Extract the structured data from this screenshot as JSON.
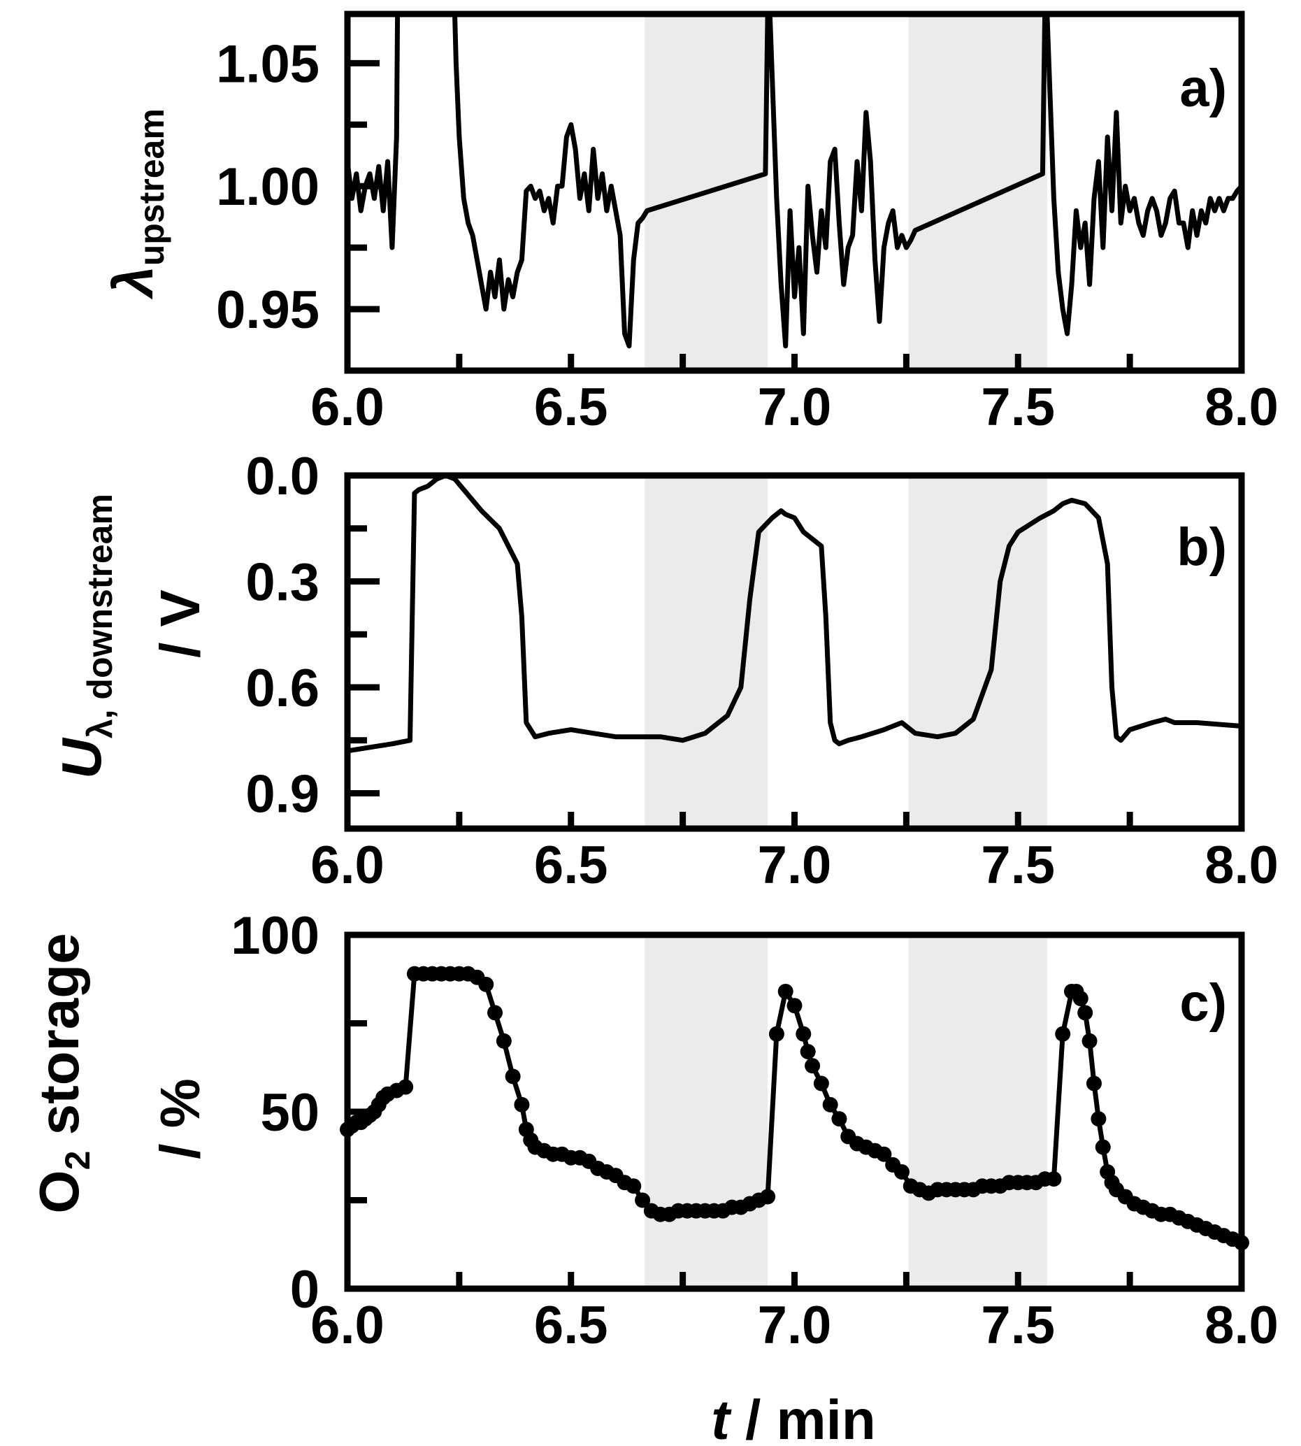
{
  "chart_data": [
    {
      "type": "line",
      "panel_label": "a)",
      "ylabel_symbol": "λ",
      "ylabel_subscript": "upstream",
      "xlim": [
        6.0,
        8.0
      ],
      "ylim": [
        0.925,
        1.07
      ],
      "yticks": [
        0.95,
        1.0,
        1.05
      ],
      "ytick_labels": [
        "0.95",
        "1.00",
        "1.05"
      ],
      "xticks": [
        6.0,
        6.5,
        7.0,
        7.5,
        8.0
      ],
      "xtick_labels": [
        "6.0",
        "6.5",
        "7.0",
        "7.5",
        "8.0"
      ],
      "shaded_x_ranges": [
        [
          6.665,
          6.94
        ],
        [
          7.255,
          7.565
        ]
      ],
      "series": [
        {
          "name": "lambda_upstream",
          "x": [
            6.0,
            6.01,
            6.02,
            6.03,
            6.04,
            6.05,
            6.06,
            6.07,
            6.08,
            6.09,
            6.1,
            6.11,
            6.112,
            6.115,
            6.24,
            6.243,
            6.25,
            6.26,
            6.27,
            6.28,
            6.29,
            6.3,
            6.31,
            6.32,
            6.33,
            6.34,
            6.35,
            6.36,
            6.37,
            6.38,
            6.39,
            6.4,
            6.41,
            6.42,
            6.43,
            6.44,
            6.45,
            6.46,
            6.47,
            6.48,
            6.49,
            6.5,
            6.51,
            6.52,
            6.53,
            6.54,
            6.55,
            6.56,
            6.57,
            6.58,
            6.59,
            6.6,
            6.61,
            6.62,
            6.63,
            6.64,
            6.65,
            6.66,
            6.67,
            6.935,
            6.94,
            6.945,
            6.96,
            6.97,
            6.98,
            6.99,
            7.0,
            7.01,
            7.02,
            7.03,
            7.04,
            7.05,
            7.06,
            7.07,
            7.08,
            7.09,
            7.1,
            7.11,
            7.12,
            7.13,
            7.14,
            7.15,
            7.16,
            7.17,
            7.18,
            7.19,
            7.2,
            7.21,
            7.22,
            7.23,
            7.24,
            7.25,
            7.26,
            7.27,
            7.555,
            7.56,
            7.565,
            7.58,
            7.59,
            7.6,
            7.61,
            7.62,
            7.63,
            7.64,
            7.65,
            7.66,
            7.67,
            7.68,
            7.69,
            7.7,
            7.71,
            7.72,
            7.73,
            7.74,
            7.75,
            7.76,
            7.77,
            7.78,
            7.79,
            7.8,
            7.81,
            7.82,
            7.83,
            7.84,
            7.85,
            7.86,
            7.87,
            7.88,
            7.89,
            7.9,
            7.91,
            7.92,
            7.93,
            7.94,
            7.95,
            7.96,
            7.97,
            7.98,
            7.99,
            8.0
          ],
          "y": [
            1.01,
            0.995,
            1.005,
            0.99,
            1.0,
            1.005,
            0.995,
            1.008,
            0.99,
            1.01,
            0.975,
            1.02,
            1.07,
            1.07,
            1.07,
            1.05,
            1.02,
            0.995,
            0.985,
            0.98,
            0.97,
            0.96,
            0.95,
            0.965,
            0.955,
            0.97,
            0.95,
            0.962,
            0.955,
            0.965,
            0.97,
            0.998,
            1.0,
            0.995,
            0.998,
            0.99,
            0.995,
            0.985,
            1.0,
            1.0,
            1.02,
            1.025,
            1.015,
            0.995,
            1.005,
            0.99,
            1.015,
            0.995,
            1.005,
            0.99,
            1.0,
            0.99,
            0.98,
            0.94,
            0.935,
            0.97,
            0.985,
            0.987,
            0.99,
            1.005,
            1.07,
            1.07,
            0.995,
            0.96,
            0.935,
            0.99,
            0.955,
            0.975,
            0.94,
            1.0,
            0.98,
            0.965,
            0.99,
            0.975,
            1.01,
            1.015,
            0.985,
            0.96,
            0.975,
            0.98,
            1.01,
            0.99,
            1.03,
            1.01,
            0.97,
            0.945,
            0.975,
            0.985,
            0.99,
            0.975,
            0.98,
            0.975,
            0.978,
            0.982,
            1.005,
            1.07,
            1.07,
            0.995,
            0.965,
            0.95,
            0.94,
            0.96,
            0.99,
            0.975,
            0.985,
            0.96,
            0.995,
            1.01,
            0.975,
            1.02,
            0.99,
            1.03,
            0.985,
            1.0,
            0.99,
            0.995,
            0.985,
            0.98,
            0.99,
            0.995,
            0.99,
            0.98,
            0.985,
            0.995,
            0.998,
            0.985,
            0.985,
            0.975,
            0.99,
            0.98,
            0.99,
            0.985,
            0.995,
            0.99,
            0.995,
            0.99,
            0.995,
            0.995,
            0.998,
            1.0
          ]
        }
      ]
    },
    {
      "type": "line",
      "panel_label": "b)",
      "ylabel_symbol": "U",
      "ylabel_subscript": "λ, downstream",
      "ylabel_unit": "/ V",
      "xlim": [
        6.0,
        8.0
      ],
      "ylim": [
        1.0,
        0.0
      ],
      "yticks": [
        0.0,
        0.3,
        0.6,
        0.9
      ],
      "ytick_labels": [
        "0.0",
        "0.3",
        "0.6",
        "0.9"
      ],
      "xticks": [
        6.0,
        6.5,
        7.0,
        7.5,
        8.0
      ],
      "xtick_labels": [
        "6.0",
        "6.5",
        "7.0",
        "7.5",
        "8.0"
      ],
      "shaded_x_ranges": [
        [
          6.665,
          6.94
        ],
        [
          7.255,
          7.565
        ]
      ],
      "series": [
        {
          "name": "U_lambda_downstream",
          "x": [
            6.0,
            6.05,
            6.1,
            6.14,
            6.15,
            6.16,
            6.18,
            6.2,
            6.22,
            6.24,
            6.26,
            6.3,
            6.34,
            6.38,
            6.39,
            6.4,
            6.41,
            6.42,
            6.45,
            6.5,
            6.55,
            6.6,
            6.65,
            6.7,
            6.75,
            6.8,
            6.85,
            6.88,
            6.9,
            6.92,
            6.95,
            6.97,
            6.98,
            7.0,
            7.02,
            7.04,
            7.06,
            7.07,
            7.08,
            7.09,
            7.1,
            7.12,
            7.15,
            7.2,
            7.24,
            7.27,
            7.32,
            7.36,
            7.4,
            7.44,
            7.46,
            7.48,
            7.5,
            7.55,
            7.58,
            7.6,
            7.62,
            7.65,
            7.68,
            7.7,
            7.71,
            7.72,
            7.73,
            7.75,
            7.8,
            7.83,
            7.85,
            7.9,
            8.0
          ],
          "y": [
            0.78,
            0.77,
            0.76,
            0.75,
            0.05,
            0.04,
            0.03,
            0.01,
            0.0,
            0.01,
            0.04,
            0.1,
            0.15,
            0.25,
            0.4,
            0.7,
            0.72,
            0.74,
            0.73,
            0.72,
            0.73,
            0.74,
            0.74,
            0.74,
            0.75,
            0.73,
            0.68,
            0.6,
            0.35,
            0.16,
            0.12,
            0.1,
            0.11,
            0.12,
            0.16,
            0.18,
            0.2,
            0.4,
            0.7,
            0.75,
            0.76,
            0.75,
            0.74,
            0.72,
            0.7,
            0.73,
            0.74,
            0.73,
            0.69,
            0.55,
            0.3,
            0.2,
            0.16,
            0.12,
            0.1,
            0.08,
            0.07,
            0.08,
            0.12,
            0.25,
            0.6,
            0.74,
            0.75,
            0.72,
            0.7,
            0.69,
            0.7,
            0.7,
            0.71
          ]
        }
      ]
    },
    {
      "type": "line",
      "panel_label": "c)",
      "ylabel_text": "O",
      "ylabel_subscript": "2",
      "ylabel_rest": " storage",
      "ylabel_unit": "/ %",
      "xlabel_symbol": "t",
      "xlabel_rest": " / min",
      "xlim": [
        6.0,
        8.0
      ],
      "ylim": [
        0,
        100
      ],
      "yticks": [
        0,
        50,
        100
      ],
      "ytick_labels": [
        "0",
        "50",
        "100"
      ],
      "xticks": [
        6.0,
        6.5,
        7.0,
        7.5,
        8.0
      ],
      "xtick_labels": [
        "6.0",
        "6.5",
        "7.0",
        "7.5",
        "8.0"
      ],
      "shaded_x_ranges": [
        [
          6.665,
          6.94
        ],
        [
          7.255,
          7.565
        ]
      ],
      "markers": true,
      "series": [
        {
          "name": "O2_storage",
          "x": [
            6.0,
            6.01,
            6.02,
            6.03,
            6.04,
            6.05,
            6.06,
            6.07,
            6.08,
            6.09,
            6.11,
            6.13,
            6.15,
            6.17,
            6.19,
            6.21,
            6.23,
            6.25,
            6.27,
            6.29,
            6.31,
            6.33,
            6.35,
            6.37,
            6.39,
            6.4,
            6.41,
            6.42,
            6.44,
            6.46,
            6.48,
            6.5,
            6.52,
            6.54,
            6.56,
            6.58,
            6.6,
            6.62,
            6.64,
            6.66,
            6.68,
            6.7,
            6.72,
            6.74,
            6.76,
            6.78,
            6.8,
            6.82,
            6.84,
            6.86,
            6.88,
            6.9,
            6.92,
            6.94,
            6.96,
            6.98,
            7.0,
            7.02,
            7.03,
            7.04,
            7.06,
            7.08,
            7.1,
            7.12,
            7.14,
            7.16,
            7.18,
            7.2,
            7.22,
            7.24,
            7.26,
            7.28,
            7.3,
            7.32,
            7.34,
            7.36,
            7.38,
            7.4,
            7.42,
            7.44,
            7.46,
            7.48,
            7.5,
            7.52,
            7.54,
            7.56,
            7.58,
            7.6,
            7.62,
            7.63,
            7.64,
            7.65,
            7.66,
            7.67,
            7.68,
            7.69,
            7.7,
            7.71,
            7.72,
            7.74,
            7.76,
            7.78,
            7.8,
            7.82,
            7.84,
            7.86,
            7.88,
            7.9,
            7.92,
            7.94,
            7.96,
            7.98,
            8.0
          ],
          "y": [
            45,
            46,
            47,
            47,
            48,
            49,
            50,
            52,
            54,
            55,
            56,
            57,
            89,
            89,
            89,
            89,
            89,
            89,
            89,
            88,
            86,
            78,
            70,
            60,
            52,
            45,
            42,
            40,
            39,
            38,
            38,
            37,
            37,
            36,
            34,
            33,
            32,
            30,
            29,
            25,
            22,
            21,
            21,
            22,
            22,
            22,
            22,
            22,
            22,
            23,
            23,
            24,
            25,
            26,
            72,
            84,
            80,
            72,
            67,
            63,
            58,
            52,
            48,
            43,
            41,
            40,
            39,
            38,
            35,
            33,
            29,
            28,
            27,
            28,
            28,
            28,
            28,
            28,
            29,
            29,
            29,
            30,
            30,
            30,
            30,
            31,
            31,
            72,
            84,
            84,
            82,
            78,
            70,
            58,
            48,
            40,
            33,
            30,
            28,
            26,
            24,
            23,
            22,
            21,
            21,
            20,
            19,
            18,
            17,
            16,
            15,
            14,
            13
          ]
        }
      ]
    }
  ]
}
